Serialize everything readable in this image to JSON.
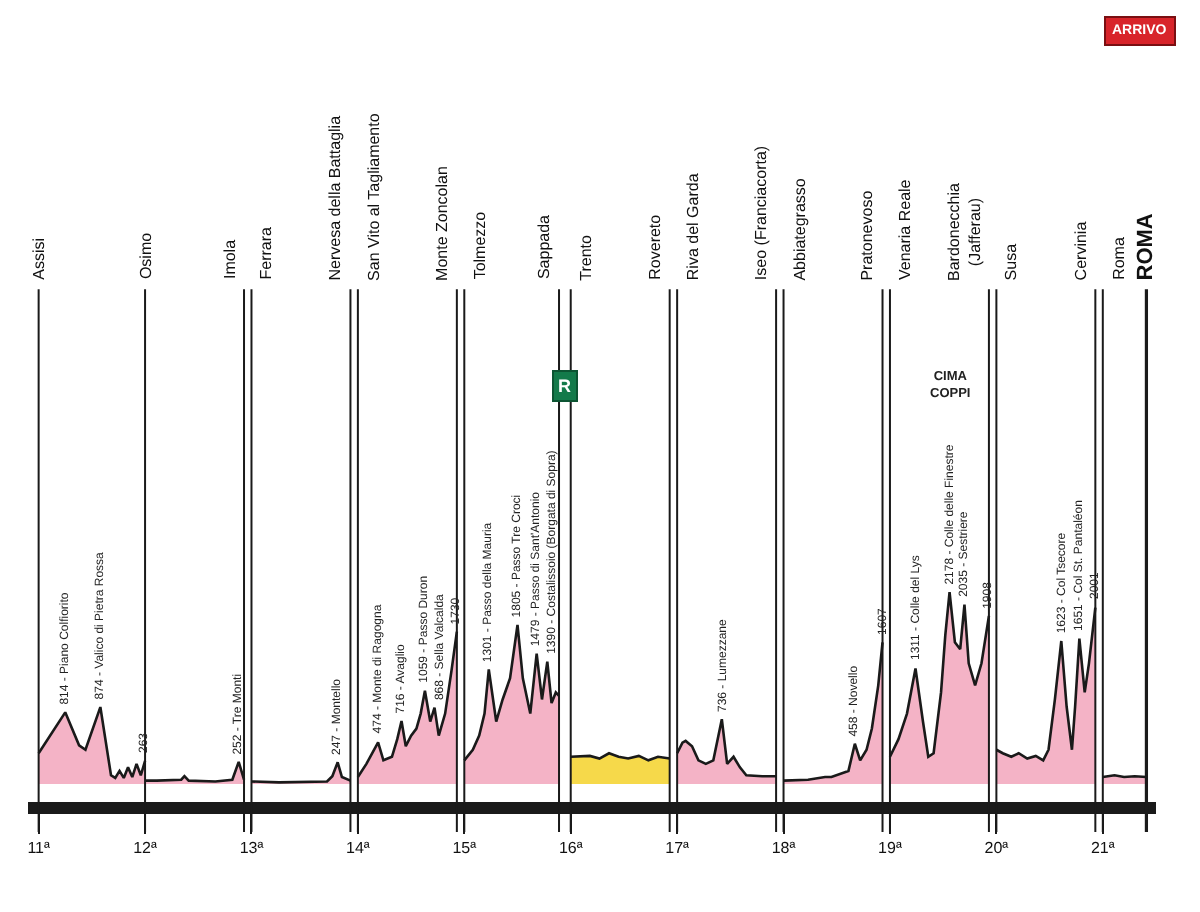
{
  "chart_data": {
    "type": "area",
    "xlim": [
      10.9,
      21.5
    ],
    "tick_labels": "x",
    "xticks": [
      {
        "value": 11,
        "label": "11ª"
      },
      {
        "value": 12,
        "label": "12ª"
      },
      {
        "value": 13,
        "label": "13ª"
      },
      {
        "value": 14,
        "label": "14ª"
      },
      {
        "value": 15,
        "label": "15ª"
      },
      {
        "value": 16,
        "label": "16ª"
      },
      {
        "value": 17,
        "label": "17ª"
      },
      {
        "value": 18,
        "label": "18ª"
      },
      {
        "value": 19,
        "label": "19ª"
      },
      {
        "value": 20,
        "label": "20ª"
      },
      {
        "value": 21,
        "label": "21ª"
      }
    ],
    "series": [
      {
        "color": "#f4b3c6",
        "x": [
          11.0,
          11.25,
          11.38,
          11.44,
          11.58,
          11.68,
          11.72,
          11.76,
          11.8,
          11.84,
          11.88,
          11.92,
          11.96,
          12.0
        ],
        "values": [
          350,
          814,
          440,
          390,
          874,
          100,
          70,
          150,
          70,
          190,
          80,
          230,
          100,
          263
        ],
        "value_labels": [
          null,
          "814 - Piano Colfiorito",
          null,
          null,
          "874 - Valico di Pietra Rossa",
          null,
          null,
          null,
          null,
          null,
          null,
          null,
          null,
          "263"
        ]
      },
      {
        "color": "#f4b3c6",
        "x": [
          12.0,
          12.11,
          12.34,
          12.37,
          12.41,
          12.66,
          12.82,
          12.88,
          12.93
        ],
        "values": [
          40,
          40,
          50,
          90,
          40,
          30,
          50,
          252,
          50
        ],
        "value_labels": [
          null,
          null,
          null,
          null,
          null,
          null,
          null,
          "252 - Tre Monti",
          null
        ]
      },
      {
        "color": "#f4b3c6",
        "x": [
          13.0,
          13.26,
          13.71,
          13.76,
          13.81,
          13.85,
          13.93
        ],
        "values": [
          30,
          20,
          30,
          90,
          247,
          80,
          40
        ],
        "value_labels": [
          null,
          null,
          null,
          null,
          "247 - Montello",
          null,
          null
        ]
      },
      {
        "color": "#f4b3c6",
        "x": [
          14.0,
          14.08,
          14.19,
          14.24,
          14.32,
          14.37,
          14.41,
          14.45,
          14.5,
          14.55,
          14.59,
          14.63,
          14.68,
          14.72,
          14.76,
          14.82,
          14.88,
          14.93
        ],
        "values": [
          80,
          230,
          474,
          270,
          310,
          510,
          716,
          430,
          550,
          630,
          800,
          1059,
          710,
          868,
          550,
          800,
          1290,
          1730
        ],
        "value_labels": [
          null,
          null,
          "474 - Monte di Ragogna",
          null,
          null,
          null,
          "716 - Avaglio",
          null,
          null,
          null,
          null,
          "1059 - Passo Duron",
          null,
          "868 - Sella Valcalda",
          null,
          null,
          null,
          "1730"
        ]
      },
      {
        "color": "#f4b3c6",
        "x": [
          15.0,
          15.08,
          15.14,
          15.19,
          15.23,
          15.3,
          15.36,
          15.43,
          15.5,
          15.55,
          15.62,
          15.68,
          15.73,
          15.78,
          15.82,
          15.86,
          15.89
        ],
        "values": [
          270,
          390,
          550,
          800,
          1301,
          710,
          960,
          1200,
          1805,
          1200,
          800,
          1479,
          960,
          1390,
          920,
          1040,
          1000
        ],
        "value_labels": [
          null,
          null,
          null,
          null,
          "1301 - Passo della Mauria",
          null,
          null,
          null,
          "1805 - Passo Tre Croci",
          null,
          null,
          "1479 - Passo di Sant'Antonio",
          null,
          "1390 - Costalissoio (Borgata di Sopra)",
          null,
          null,
          null
        ]
      },
      {
        "color": "#f6d94a",
        "x": [
          16.0,
          16.18,
          16.27,
          16.36,
          16.45,
          16.54,
          16.64,
          16.73,
          16.82,
          16.93
        ],
        "values": [
          310,
          320,
          290,
          350,
          310,
          290,
          320,
          270,
          310,
          290
        ]
      },
      {
        "color": "#f4b3c6",
        "x": [
          17.0,
          17.05,
          17.08,
          17.14,
          17.2,
          17.27,
          17.34,
          17.42,
          17.47,
          17.53,
          17.59,
          17.65,
          17.8,
          17.93
        ],
        "values": [
          350,
          470,
          490,
          430,
          270,
          230,
          270,
          736,
          230,
          310,
          190,
          100,
          90,
          90
        ],
        "value_labels": [
          null,
          null,
          null,
          null,
          null,
          null,
          null,
          "736 - Lumezzane",
          null,
          null,
          null,
          null,
          null,
          null
        ]
      },
      {
        "color": "#f4b3c6",
        "x": [
          18.0,
          18.23,
          18.39,
          18.45,
          18.61,
          18.67,
          18.72,
          18.78,
          18.83,
          18.89,
          18.93
        ],
        "values": [
          40,
          50,
          80,
          80,
          150,
          458,
          270,
          390,
          630,
          1120,
          1607
        ],
        "value_labels": [
          null,
          null,
          null,
          null,
          null,
          "458 - Novello",
          null,
          null,
          null,
          null,
          "1607"
        ]
      },
      {
        "color": "#f4b3c6",
        "x": [
          19.0,
          19.08,
          19.16,
          19.24,
          19.31,
          19.36,
          19.41,
          19.48,
          19.52,
          19.56,
          19.61,
          19.66,
          19.7,
          19.74,
          19.8,
          19.86,
          19.93
        ],
        "values": [
          310,
          510,
          800,
          1311,
          710,
          310,
          350,
          1040,
          1690,
          2178,
          1610,
          1530,
          2035,
          1370,
          1120,
          1370,
          1908
        ],
        "value_labels": [
          null,
          null,
          null,
          "1311 - Colle del Lys",
          null,
          null,
          null,
          null,
          null,
          "2178 - Colle delle Finestre",
          null,
          null,
          "2035 - Sestriere",
          null,
          null,
          null,
          "1908"
        ]
      },
      {
        "color": "#f4b3c6",
        "x": [
          20.0,
          20.06,
          20.14,
          20.21,
          20.29,
          20.37,
          20.44,
          20.49,
          20.55,
          20.61,
          20.66,
          20.71,
          20.74,
          20.78,
          20.83,
          20.87,
          20.93
        ],
        "values": [
          390,
          350,
          310,
          350,
          290,
          320,
          270,
          390,
          960,
          1623,
          880,
          390,
          880,
          1651,
          1040,
          1370,
          2001
        ],
        "value_labels": [
          null,
          null,
          null,
          null,
          null,
          null,
          null,
          null,
          null,
          "1623 - Col Tsecore",
          null,
          null,
          null,
          "1651 - Col St. Pantaléon",
          null,
          null,
          "2001"
        ]
      },
      {
        "color": "#f4b3c6",
        "x": [
          21.0,
          21.11,
          21.2,
          21.3,
          21.41
        ],
        "values": [
          80,
          100,
          80,
          90,
          80
        ]
      }
    ],
    "ref_lines": [
      {
        "axis": "x",
        "value": 11,
        "label": "Assisi"
      },
      {
        "axis": "x",
        "value": 12,
        "label": "Osimo"
      },
      {
        "axis": "x",
        "value": 12.93,
        "label": "Imola"
      },
      {
        "axis": "x",
        "value": 13,
        "label": "Ferrara"
      },
      {
        "axis": "x",
        "value": 13.93,
        "label": "Nervesa della Battaglia"
      },
      {
        "axis": "x",
        "value": 14,
        "label": "San Vito al Tagliamento"
      },
      {
        "axis": "x",
        "value": 14.93,
        "label": "Monte Zoncolan"
      },
      {
        "axis": "x",
        "value": 15,
        "label": "Tolmezzo"
      },
      {
        "axis": "x",
        "value": 15.89,
        "label": "Sappada"
      },
      {
        "axis": "x",
        "value": 16,
        "label": "Trento"
      },
      {
        "axis": "x",
        "value": 16.93,
        "label": "Rovereto"
      },
      {
        "axis": "x",
        "value": 17,
        "label": "Riva del Garda"
      },
      {
        "axis": "x",
        "value": 17.93,
        "label": "Iseo (Franciacorta)"
      },
      {
        "axis": "x",
        "value": 18,
        "label": "Abbiategrasso"
      },
      {
        "axis": "x",
        "value": 18.93,
        "label": "Pratonevoso"
      },
      {
        "axis": "x",
        "value": 19,
        "label": "Venaria Reale"
      },
      {
        "axis": "x",
        "value": 19.93,
        "label": "Bardonecchia\n(Jafferau)"
      },
      {
        "axis": "x",
        "value": 20,
        "label": "Susa"
      },
      {
        "axis": "x",
        "value": 20.93,
        "label": "Cervinia"
      },
      {
        "axis": "x",
        "value": 21,
        "label": "Roma"
      },
      {
        "axis": "x",
        "value": 21.41,
        "label": "ROMA"
      }
    ],
    "annotations": [
      "ARRIVO",
      {
        "text": "R",
        "x": 15.95
      },
      "CIMA\nCOPPI"
    ]
  }
}
